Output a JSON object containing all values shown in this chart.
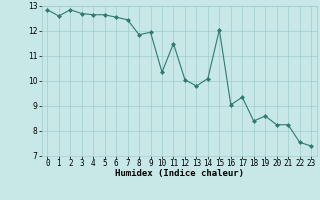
{
  "x": [
    0,
    1,
    2,
    3,
    4,
    5,
    6,
    7,
    8,
    9,
    10,
    11,
    12,
    13,
    14,
    15,
    16,
    17,
    18,
    19,
    20,
    21,
    22,
    23
  ],
  "y": [
    12.85,
    12.6,
    12.85,
    12.7,
    12.65,
    12.65,
    12.55,
    12.45,
    11.85,
    11.95,
    10.35,
    11.5,
    10.05,
    9.8,
    10.1,
    12.05,
    9.05,
    9.35,
    8.4,
    8.6,
    8.25,
    8.25,
    7.55,
    7.4
  ],
  "line_color": "#2d7a6e",
  "marker": "D",
  "marker_size": 2,
  "bg_color": "#c8e8e8",
  "grid_color": "#a0cccc",
  "xlabel": "Humidex (Indice chaleur)",
  "xlim": [
    -0.5,
    23.5
  ],
  "ylim": [
    7,
    13
  ],
  "yticks": [
    7,
    8,
    9,
    10,
    11,
    12,
    13
  ],
  "xticks": [
    0,
    1,
    2,
    3,
    4,
    5,
    6,
    7,
    8,
    9,
    10,
    11,
    12,
    13,
    14,
    15,
    16,
    17,
    18,
    19,
    20,
    21,
    22,
    23
  ],
  "label_fontsize": 6.5,
  "tick_fontsize": 5.5
}
